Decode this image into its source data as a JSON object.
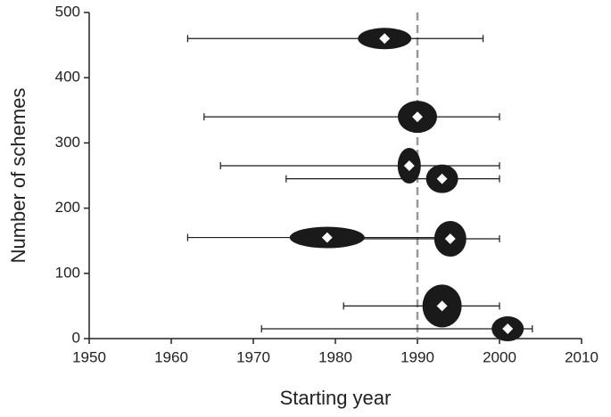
{
  "chart_data": {
    "type": "scatter",
    "x_label": "Starting year",
    "y_label": "Number of schemes",
    "xlim": [
      1950,
      2010
    ],
    "xticks": [
      1950,
      1960,
      1970,
      1980,
      1990,
      2000,
      2010
    ],
    "ylim": [
      0,
      500
    ],
    "yticks": [
      0,
      100,
      200,
      300,
      400,
      500
    ],
    "reference_x": 1990,
    "reference_color": "#999999",
    "marker_color": "#1a1a1a",
    "icon_color": "#1a1a1a",
    "series": [
      {
        "x": [
          1986,
          1990,
          1989,
          1993,
          1979,
          1994,
          1993,
          2001
        ],
        "values": [
          460,
          340,
          265,
          245,
          155,
          153,
          50,
          15
        ],
        "x_low": [
          1962,
          1964,
          1966,
          1974,
          1962,
          1983,
          1981,
          1971
        ],
        "x_high": [
          1998,
          2000,
          2000,
          2000,
          1994,
          2000,
          2000,
          2004
        ]
      }
    ]
  }
}
